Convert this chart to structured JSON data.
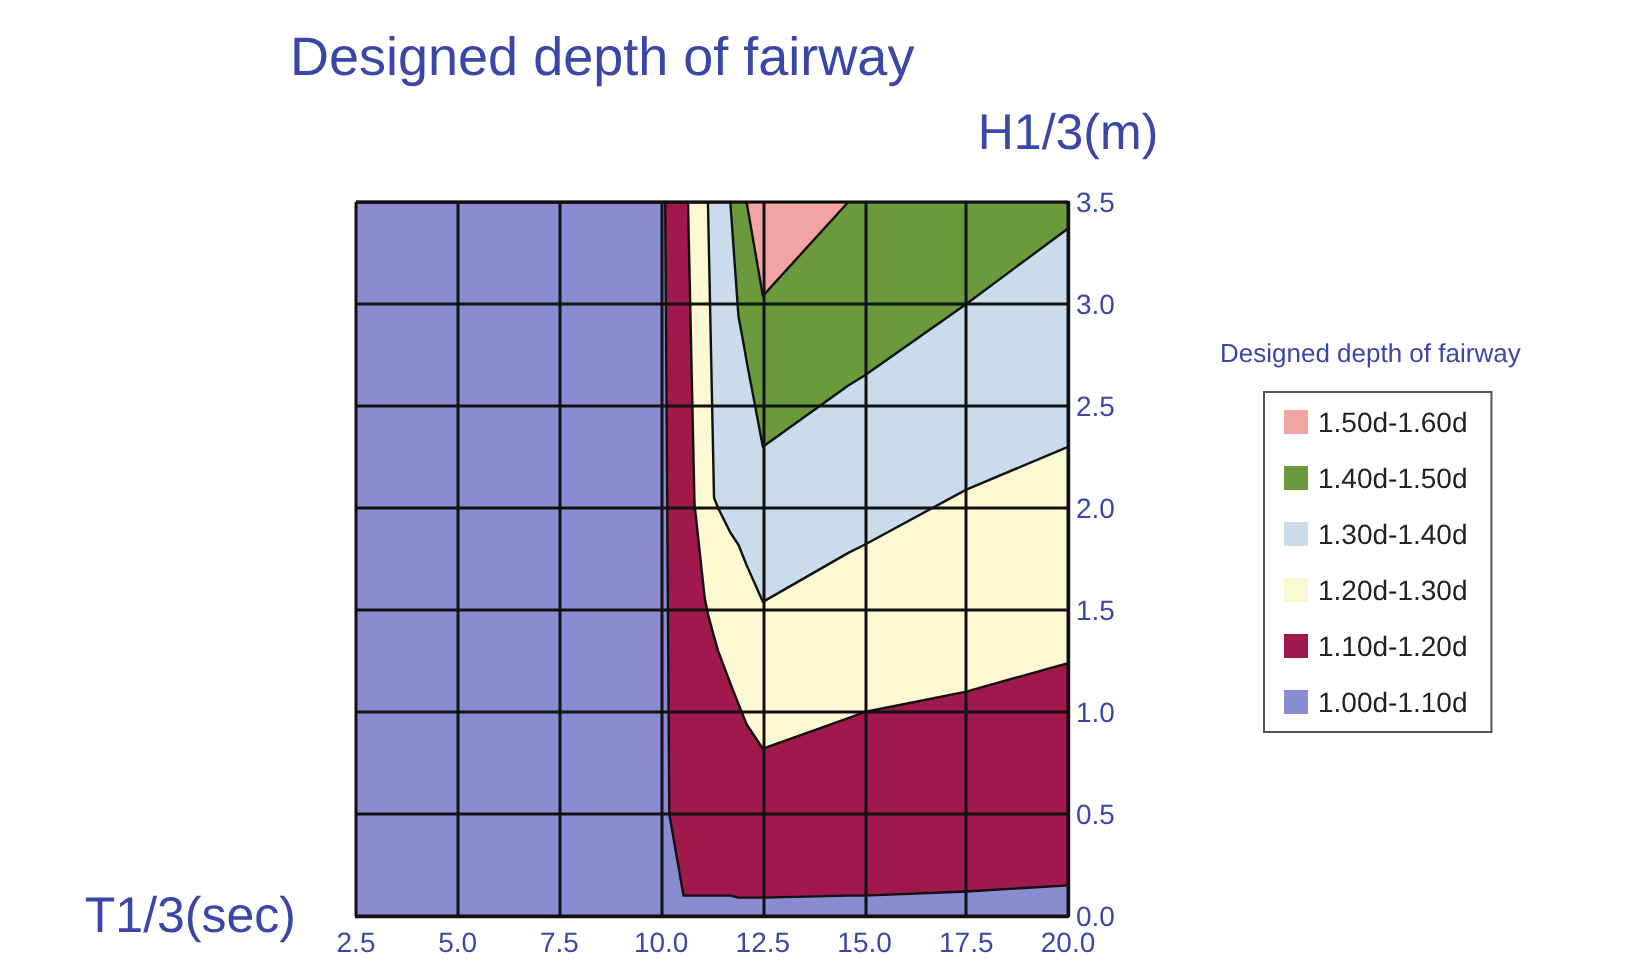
{
  "chart_data": {
    "type": "area",
    "stacked": true,
    "title": "Designed depth of fairway",
    "xlabel": "T1/3(sec)",
    "ylabel": "H1/3(m)",
    "legend_title": "Designed depth of fairway",
    "xlim": [
      2.5,
      20
    ],
    "xticks": [
      2.5,
      {
        "value": 5,
        "label": "5.0"
      },
      7.5,
      {
        "value": 10,
        "label": "10.0"
      },
      12.5,
      {
        "value": 15,
        "label": "15.0"
      },
      17.5,
      {
        "value": 20,
        "label": "20.0"
      }
    ],
    "ylim": [
      0,
      3.5
    ],
    "yticks": [
      {
        "value": 0,
        "label": "0.0"
      },
      0.5,
      {
        "value": 1,
        "label": "1.0"
      },
      1.5,
      {
        "value": 2,
        "label": "2.0"
      },
      2.5,
      {
        "value": 3,
        "label": "3.0"
      },
      3.5
    ],
    "grid": true,
    "legend": "right",
    "marker": "none",
    "x": [
      2.5,
      10.1,
      10.2,
      10.55,
      10.66,
      10.82,
      11.07,
      11.15,
      11.3,
      11.4,
      11.7,
      11.9,
      12.04,
      12.1,
      12.5,
      14.6,
      15,
      17.5,
      20
    ],
    "series": [
      {
        "name": "1.00d-1.10d",
        "color": "#8b8bd2",
        "values": [
          3.5,
          3.5,
          0.5,
          0.1,
          0.1,
          0.1,
          0.1,
          0.1,
          0.1,
          0.1,
          0.1,
          0.09,
          0.09,
          0.09,
          0.09,
          0.1,
          0.1,
          0.12,
          0.15
        ]
      },
      {
        "name": "1.10d-1.20d",
        "color": "#a1184b",
        "values": [
          0,
          0,
          3.0,
          3.4,
          3.4,
          1.92,
          1.46,
          1.38,
          1.27,
          1.2,
          1.04,
          0.95,
          0.88,
          0.85,
          0.73,
          0.87,
          0.9,
          0.98,
          1.09
        ]
      },
      {
        "name": "1.20d-1.30d",
        "color": "#fbf8d2",
        "values": [
          0,
          0,
          0,
          0,
          0,
          1.48,
          1.94,
          2.02,
          0.68,
          0.7,
          0.74,
          0.78,
          0.78,
          0.78,
          0.72,
          0.81,
          0.82,
          0.99,
          1.06
        ]
      },
      {
        "name": "1.30d-1.40d",
        "color": "#c9dcec",
        "values": [
          0,
          0,
          0,
          0,
          0,
          0,
          0,
          0,
          1.45,
          1.5,
          1.62,
          1.12,
          1.04,
          1.0,
          0.76,
          0.82,
          0.83,
          0.91,
          1.07
        ]
      },
      {
        "name": "1.40d-1.50d",
        "color": "#6b9a3c",
        "values": [
          0,
          0,
          0,
          0,
          0,
          0,
          0,
          0,
          0,
          0,
          0,
          0.56,
          0.71,
          0.78,
          0.74,
          0.9,
          0.85,
          0.5,
          0.13
        ]
      },
      {
        "name": "1.50d-1.60d",
        "color": "#f4a3a3",
        "values": [
          0,
          0,
          0,
          0,
          0,
          0,
          0,
          0,
          0,
          0,
          0,
          0,
          0,
          0,
          0.46,
          0,
          0,
          0,
          0
        ]
      }
    ]
  }
}
